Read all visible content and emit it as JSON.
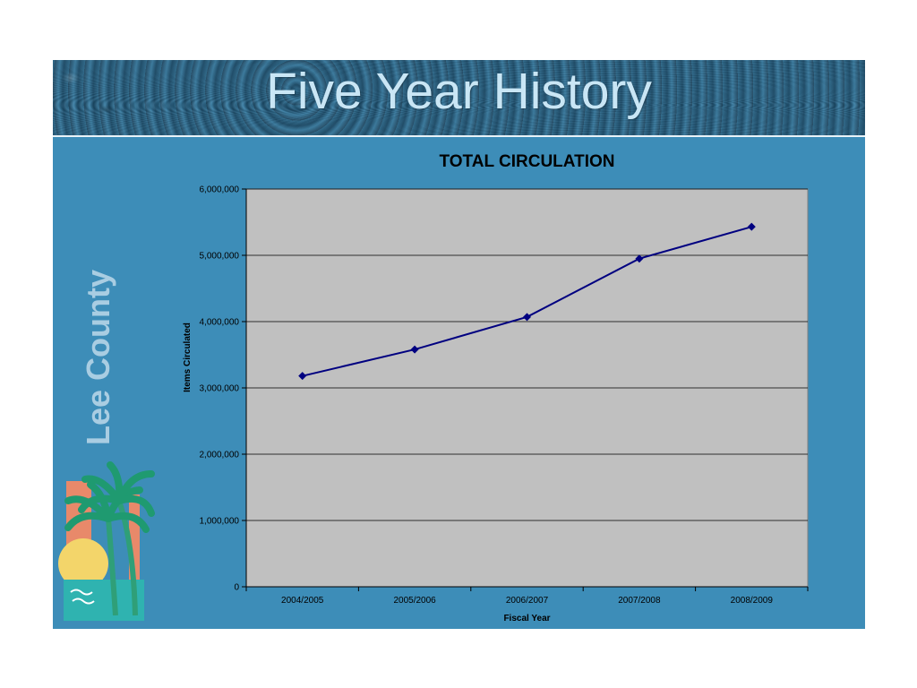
{
  "slide": {
    "title": "Five Year History",
    "logo_text": "Lee County"
  },
  "colors": {
    "slide_background": "#3d8db8",
    "title_text": "#c9e6f5",
    "plot_background": "#c0c0c0",
    "series_line": "#000080"
  },
  "chart_data": {
    "type": "line",
    "title": "TOTAL CIRCULATION",
    "xlabel": "Fiscal Year",
    "ylabel": "Items Circulated",
    "categories": [
      "2004/2005",
      "2005/2006",
      "2006/2007",
      "2007/2008",
      "2008/2009"
    ],
    "series": [
      {
        "values": [
          3180000,
          3580000,
          4070000,
          4950000,
          5430000
        ],
        "marker": "diamond"
      }
    ],
    "ylim": [
      0,
      6000000
    ],
    "yticks": [
      0,
      1000000,
      2000000,
      3000000,
      4000000,
      5000000,
      6000000
    ],
    "ytick_labels": [
      "0",
      "1,000,000",
      "2,000,000",
      "3,000,000",
      "4,000,000",
      "5,000,000",
      "6,000,000"
    ],
    "grid": true,
    "legend": "none"
  }
}
